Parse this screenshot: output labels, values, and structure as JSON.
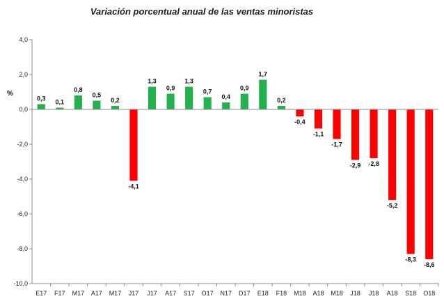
{
  "chart_data": {
    "type": "bar",
    "title": "Variación porcentual anual de las ventas minoristas",
    "ylabel": "%",
    "xlabel": "",
    "categories": [
      "E17",
      "F17",
      "M17",
      "A17",
      "M17",
      "J17",
      "J17",
      "A17",
      "S17",
      "O17",
      "N17",
      "D17",
      "E18",
      "F18",
      "M18",
      "A18",
      "M18",
      "J18",
      "J18",
      "A18",
      "S18",
      "O18"
    ],
    "values": [
      0.3,
      0.1,
      0.8,
      0.5,
      0.2,
      -4.1,
      1.3,
      0.9,
      1.3,
      0.7,
      0.4,
      0.9,
      1.7,
      0.2,
      -0.4,
      -1.1,
      -1.7,
      -2.9,
      -2.8,
      -5.2,
      -8.3,
      -8.6
    ],
    "value_labels": [
      "0,3",
      "0,1",
      "0,8",
      "0,5",
      "0,2",
      "-4,1",
      "1,3",
      "0,9",
      "1,3",
      "0,7",
      "0,4",
      "0,9",
      "1,7",
      "0,2",
      "-0,4",
      "-1,1",
      "-1,7",
      "-2,9",
      "-2,8",
      "-5,2",
      "-8,3",
      "-8,6"
    ],
    "ylim": [
      -10,
      4
    ],
    "yticks": [
      4,
      2,
      0,
      -2,
      -4,
      -6,
      -8,
      -10
    ],
    "ytick_labels": [
      "4,0",
      "2,0",
      "0,0",
      "-2,0",
      "-4,0",
      "-6,0",
      "-8,0",
      "-10,0"
    ],
    "grid": false,
    "colors": {
      "positive": "#22b14c",
      "negative": "#ff0000",
      "axis": "#8c8c8c"
    }
  }
}
